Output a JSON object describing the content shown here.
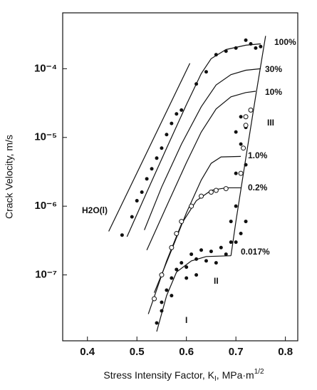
{
  "chart_data": {
    "type": "line",
    "x_label_parts": [
      "Stress Intensity Factor, K",
      "I",
      ", MPa·m",
      "1/2"
    ],
    "y_label": "Crack Velocity, m/s",
    "xlim": [
      0.35,
      0.825
    ],
    "xticks": [
      0.4,
      0.5,
      0.6,
      0.7,
      0.8
    ],
    "ylim": [
      1.1e-08,
      0.00065
    ],
    "ylog": true,
    "yticks": [
      {
        "value": 0.0001,
        "label": "10⁻⁴"
      },
      {
        "value": 1e-05,
        "label": "10⁻⁵"
      },
      {
        "value": 1e-06,
        "label": "10⁻⁶"
      },
      {
        "value": 1e-07,
        "label": "10⁻⁷"
      }
    ],
    "annotations": [
      "III",
      "II",
      "I"
    ],
    "series": [
      {
        "type": "line",
        "name": "H2O(l)",
        "color": "#111",
        "x": [
          0.443,
          0.607
        ],
        "values": [
          4.3e-07,
          0.00012
        ]
      },
      {
        "type": "line",
        "name": "100%",
        "color": "#111",
        "x": [
          0.48,
          0.52,
          0.56,
          0.6,
          0.63,
          0.65,
          0.68,
          0.72,
          0.75
        ],
        "values": [
          3.6e-07,
          1.6e-06,
          7e-06,
          3e-05,
          8.5e-05,
          0.00014,
          0.00019,
          0.00022,
          0.00023
        ]
      },
      {
        "type": "line",
        "name": "30%",
        "color": "#111",
        "x": [
          0.515,
          0.55,
          0.59,
          0.63,
          0.66,
          0.69,
          0.72,
          0.75
        ],
        "values": [
          4.5e-07,
          1.9e-06,
          8e-06,
          2.8e-05,
          5.8e-05,
          8.2e-05,
          9.5e-05,
          0.0001
        ]
      },
      {
        "type": "line",
        "name": "10%",
        "color": "#111",
        "x": [
          0.52,
          0.56,
          0.6,
          0.63,
          0.66,
          0.69,
          0.72,
          0.74
        ],
        "values": [
          2.3e-07,
          1e-06,
          4.3e-06,
          1.2e-05,
          2.6e-05,
          3.9e-05,
          4.5e-05,
          4.7e-05
        ]
      },
      {
        "type": "line",
        "name": "1.0%",
        "color": "#111",
        "x": [
          0.535,
          0.57,
          0.6,
          0.63,
          0.65,
          0.67,
          0.71
        ],
        "values": [
          5.5e-08,
          2.3e-07,
          8e-07,
          2.4e-06,
          4.2e-06,
          5.2e-06,
          5.3e-06
        ]
      },
      {
        "type": "line",
        "name": "0.2%",
        "color": "#111",
        "x": [
          0.523,
          0.56,
          0.59,
          0.62,
          0.65,
          0.68,
          0.71
        ],
        "values": [
          2.7e-08,
          1.6e-07,
          5.5e-07,
          1.2e-06,
          1.7e-06,
          1.85e-06,
          1.85e-06
        ]
      },
      {
        "type": "line",
        "name": "0.017%",
        "color": "#111",
        "x": [
          0.54,
          0.56,
          0.58,
          0.61,
          0.64,
          0.69
        ],
        "values": [
          1.5e-08,
          5e-08,
          1.1e-07,
          1.6e-07,
          1.85e-07,
          1.9e-07
        ]
      },
      {
        "type": "line",
        "color": "#111",
        "x": [
          0.69,
          0.7,
          0.72,
          0.74,
          0.76
        ],
        "values": [
          1.9e-07,
          6e-07,
          5e-06,
          4e-05,
          0.0003
        ]
      },
      {
        "type": "scatter",
        "marker": "filled",
        "color": "#111",
        "x": [
          0.47,
          0.49,
          0.5,
          0.51,
          0.52,
          0.53,
          0.54,
          0.55,
          0.56,
          0.57,
          0.58,
          0.59,
          0.62,
          0.64,
          0.66,
          0.68,
          0.7,
          0.72,
          0.73,
          0.74,
          0.75,
          0.7,
          0.71,
          0.72,
          0.7,
          0.73,
          0.71,
          0.72,
          0.7,
          0.69,
          0.71,
          0.72,
          0.7,
          0.54,
          0.55,
          0.56,
          0.57,
          0.58,
          0.59,
          0.6,
          0.61,
          0.62,
          0.63,
          0.64,
          0.65,
          0.66,
          0.67,
          0.68,
          0.69,
          0.6,
          0.62,
          0.57,
          0.55
        ],
        "values": [
          3.8e-07,
          7e-07,
          1.2e-06,
          1.6e-06,
          2.5e-06,
          3.5e-06,
          5e-06,
          7e-06,
          1.1e-05,
          1.6e-05,
          2.2e-05,
          2.5e-05,
          6e-05,
          9e-05,
          0.00016,
          0.00018,
          0.0002,
          0.00026,
          0.00023,
          0.0002,
          0.00021,
          3e-06,
          8e-06,
          1.4e-05,
          1.2e-05,
          2.5e-05,
          2e-05,
          4e-06,
          1e-06,
          6e-07,
          4e-07,
          6e-07,
          3e-07,
          2e-08,
          3e-08,
          6e-08,
          9e-08,
          1.2e-07,
          1.5e-07,
          1.3e-07,
          2e-07,
          1.7e-07,
          2.3e-07,
          1.6e-07,
          2.2e-07,
          1.5e-07,
          2.5e-07,
          2e-07,
          3e-07,
          9e-08,
          1e-07,
          5e-08,
          4e-08
        ]
      },
      {
        "type": "scatter",
        "marker": "open",
        "color": "#111",
        "x": [
          0.535,
          0.55,
          0.57,
          0.58,
          0.59,
          0.61,
          0.63,
          0.65,
          0.66,
          0.68,
          0.71,
          0.715,
          0.72,
          0.72,
          0.73
        ],
        "values": [
          4.5e-08,
          1e-07,
          2.5e-07,
          4e-07,
          6e-07,
          1e-06,
          1.4e-06,
          1.6e-06,
          1.7e-06,
          1.8e-06,
          3e-06,
          7e-06,
          1.5e-05,
          2e-05,
          2.5e-05
        ]
      }
    ]
  }
}
